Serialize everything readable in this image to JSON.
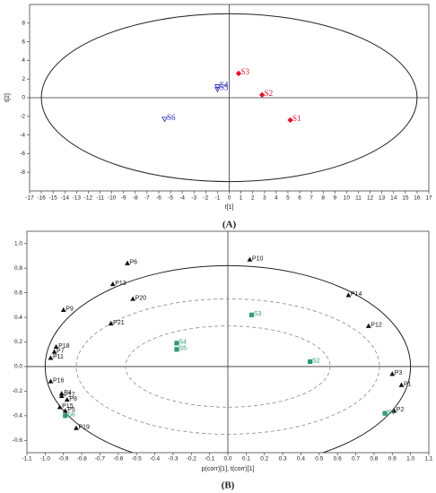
{
  "chart_data": [
    {
      "type": "scatter",
      "title": "(A)",
      "xlabel": "t[1]",
      "ylabel": "t[2]",
      "xlim": [
        -17,
        17
      ],
      "ylim": [
        -10,
        10
      ],
      "xticks": [
        -17,
        -16,
        -15,
        -14,
        -13,
        -12,
        -11,
        -10,
        -9,
        -8,
        -7,
        -6,
        -5,
        -4,
        -3,
        -2,
        -1,
        0,
        1,
        2,
        3,
        4,
        5,
        6,
        7,
        8,
        9,
        10,
        11,
        12,
        13,
        14,
        15,
        16,
        17
      ],
      "yticks": [
        -8,
        -6,
        -4,
        -2,
        0,
        2,
        4,
        6,
        8
      ],
      "zero_lines": true,
      "ellipses": [
        {
          "rx": 16,
          "ry": 9,
          "dashed": false
        }
      ],
      "series": [
        {
          "color": "#e3122a",
          "marker": "diamond",
          "labels": [
            "S1",
            "S2",
            "S3"
          ],
          "x": [
            5.2,
            2.8,
            0.8
          ],
          "y": [
            -2.4,
            0.3,
            2.6
          ]
        },
        {
          "color": "#2a2ab8",
          "marker": "triangle-down",
          "labels": [
            "S4",
            "S5",
            "S6"
          ],
          "x": [
            -1.0,
            -1.0,
            -5.5
          ],
          "y": [
            1.2,
            0.9,
            -2.3
          ]
        }
      ]
    },
    {
      "type": "scatter",
      "title": "(B)",
      "xlabel": "p(corr)[1], t(corr)[1]",
      "xlim": [
        -1.1,
        1.1
      ],
      "ylim": [
        -0.7,
        1.1
      ],
      "xticks": [
        -1.1,
        {
          "value": -1,
          "label": "-1.0"
        },
        -0.9,
        -0.8,
        -0.7,
        -0.6,
        -0.5,
        -0.4,
        -0.3,
        -0.2,
        -0.1,
        {
          "value": 0,
          "label": "0.0"
        },
        0.1,
        0.2,
        0.3,
        0.4,
        0.5,
        0.6,
        0.7,
        0.8,
        0.9,
        {
          "value": 1,
          "label": "1.0"
        },
        1.1
      ],
      "yticks": [
        -0.6,
        -0.4,
        -0.2,
        {
          "value": 0,
          "label": "0.0"
        },
        0.2,
        0.4,
        0.6,
        0.8,
        {
          "value": 1,
          "label": "1.0"
        }
      ],
      "zero_lines": true,
      "ellipses": [
        {
          "rx": 1,
          "ry": 0.82,
          "dashed": false
        },
        {
          "rx": 0.83,
          "ry": 0.55,
          "dashed": true
        },
        {
          "rx": 0.56,
          "ry": 0.33,
          "dashed": true
        }
      ],
      "series": [
        {
          "color": "#111111",
          "marker": "triangle",
          "labels": [
            "P1",
            "P2",
            "P3",
            "P4",
            "P5",
            "P6",
            "P7",
            "P8",
            "P9",
            "P10",
            "P11",
            "P12",
            "P13",
            "P14",
            "P15",
            "P16",
            "P17",
            "P18",
            "P19",
            "P20",
            "P21"
          ],
          "x": [
            0.95,
            0.91,
            0.9,
            -0.91,
            -0.89,
            -0.55,
            -0.95,
            -0.88,
            -0.9,
            0.12,
            -0.97,
            0.77,
            -0.63,
            0.66,
            -0.92,
            -0.97,
            -0.91,
            -0.94,
            -0.83,
            -0.52,
            -0.64
          ],
          "y": [
            -0.15,
            -0.36,
            -0.06,
            -0.22,
            -0.36,
            0.84,
            0.12,
            -0.27,
            0.46,
            0.87,
            0.07,
            0.33,
            0.67,
            0.58,
            -0.33,
            -0.12,
            -0.24,
            0.16,
            -0.5,
            0.55,
            0.35
          ]
        },
        {
          "color": "#2e9a7a",
          "marker": "square",
          "labels": [
            "S1",
            "S2",
            "S3",
            "S4",
            "S5",
            "S6"
          ],
          "x": [
            0.86,
            0.45,
            0.13,
            -0.28,
            -0.28,
            -0.89
          ],
          "y": [
            -0.38,
            0.04,
            0.42,
            0.19,
            0.14,
            -0.4
          ]
        }
      ]
    }
  ]
}
